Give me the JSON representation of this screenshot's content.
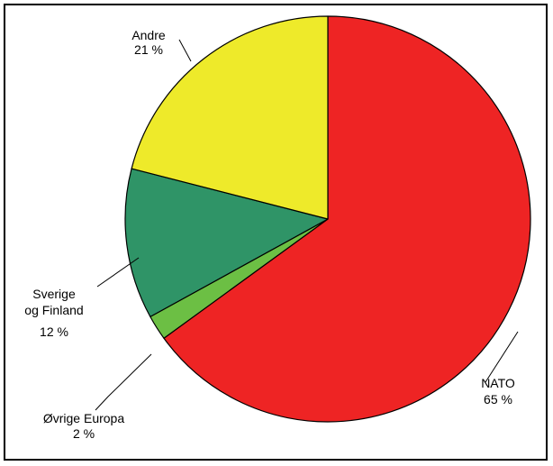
{
  "chart_data": {
    "type": "pie",
    "title": "",
    "slices": [
      {
        "label_lines": [
          "NATO"
        ],
        "value_label": "65 %",
        "value": 65,
        "color": "#ee2424"
      },
      {
        "label_lines": [
          "Øvrige Europa"
        ],
        "value_label": "2 %",
        "value": 2,
        "color": "#6cbf44"
      },
      {
        "label_lines": [
          "Sverige",
          "og Finland"
        ],
        "value_label": "12 %",
        "value": 12,
        "color": "#2f9467"
      },
      {
        "label_lines": [
          "Andre"
        ],
        "value_label": "21 %",
        "value": 21,
        "color": "#eeea2a"
      }
    ],
    "start_angle_deg": 0,
    "direction": "clockwise",
    "legend": "none",
    "label_style": "callout lines"
  }
}
